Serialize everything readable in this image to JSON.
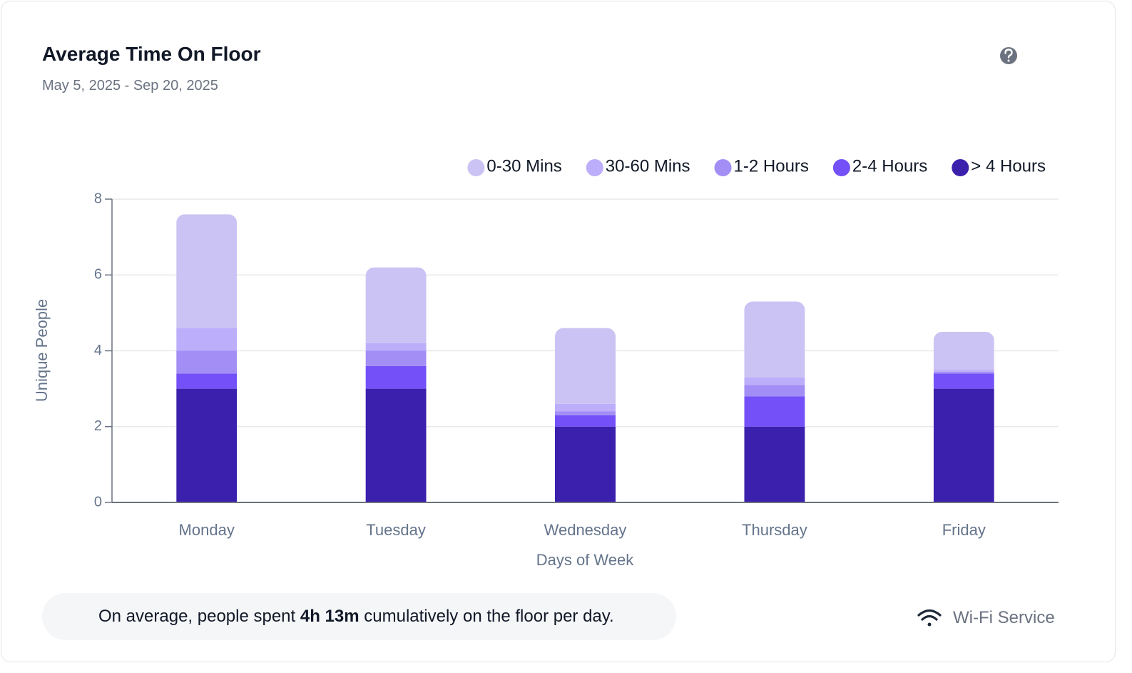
{
  "header": {
    "title": "Average Time On Floor",
    "subtitle": "May 5, 2025 - Sep 20, 2025"
  },
  "chart_data": {
    "type": "stacked_bar",
    "x_label": "Days of Week",
    "y_label": "Unique People",
    "categories": [
      "Monday",
      "Tuesday",
      "Wednesday",
      "Thursday",
      "Friday"
    ],
    "series": [
      {
        "name": "> 4 Hours",
        "color": "#3b1fad",
        "values": [
          3.0,
          3.0,
          2.0,
          2.0,
          3.0
        ]
      },
      {
        "name": "2-4 Hours",
        "color": "#7350f7",
        "values": [
          0.4,
          0.6,
          0.3,
          0.8,
          0.4
        ]
      },
      {
        "name": "1-2 Hours",
        "color": "#a28ef5",
        "values": [
          0.6,
          0.4,
          0.1,
          0.3,
          0.05
        ]
      },
      {
        "name": "30-60 Mins",
        "color": "#bcaefb",
        "values": [
          0.6,
          0.2,
          0.2,
          0.2,
          0.05
        ]
      },
      {
        "name": "0-30 Mins",
        "color": "#cbc3f3",
        "values": [
          3.0,
          2.0,
          2.0,
          2.0,
          1.0
        ]
      }
    ],
    "legend_order": [
      4,
      3,
      2,
      1,
      0
    ],
    "ylim": [
      0,
      8
    ],
    "yticks": [
      0,
      2,
      4,
      6,
      8
    ],
    "grid": true,
    "legend": "top-right"
  },
  "footer": {
    "insight": [
      "On average, people spent ",
      "4h 13m",
      " cumulatively on the floor per day."
    ],
    "source": "Wi-Fi Service"
  }
}
